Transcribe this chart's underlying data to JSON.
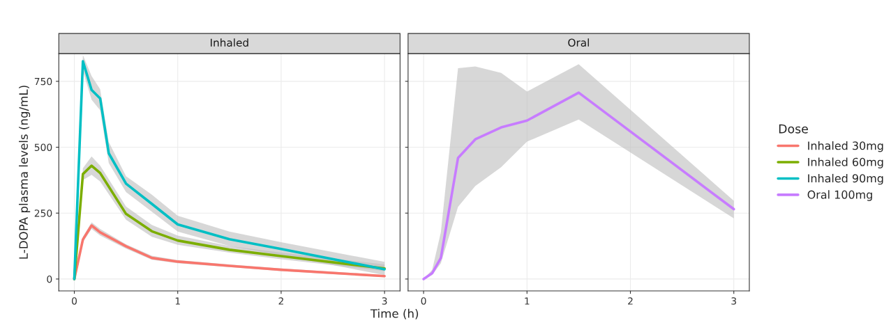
{
  "chart_data": [
    {
      "type": "line",
      "title": "Inhaled",
      "xlabel": "Time (h)",
      "ylabel": "L-DOPA plasma levels (ng/mL)",
      "legend_title": "Dose",
      "legend": "right",
      "grid": true,
      "xlim": [
        -0.15,
        3.15
      ],
      "xticks": [
        0,
        1,
        2,
        3
      ],
      "ylim": [
        -45,
        855
      ],
      "yticks": [
        0,
        250,
        500,
        750
      ],
      "series": [
        {
          "name": "Inhaled 30mg",
          "color": "#f8766d",
          "x": [
            0,
            0.083,
            0.167,
            0.25,
            0.5,
            0.75,
            1,
            1.5,
            2,
            3
          ],
          "values": [
            0,
            150,
            203,
            177,
            124,
            80,
            66,
            50,
            35,
            11
          ],
          "lower": [
            0,
            140,
            190,
            165,
            115,
            73,
            60,
            45,
            30,
            7
          ],
          "upper": [
            0,
            160,
            215,
            190,
            132,
            88,
            72,
            55,
            40,
            15
          ]
        },
        {
          "name": "Inhaled 60mg",
          "color": "#7cae00",
          "x": [
            0,
            0.083,
            0.167,
            0.25,
            0.5,
            0.75,
            1,
            1.5,
            2,
            3
          ],
          "values": [
            0,
            398,
            430,
            402,
            247,
            181,
            146,
            111,
            87,
            40
          ],
          "lower": [
            0,
            375,
            395,
            370,
            225,
            160,
            130,
            100,
            75,
            30
          ],
          "upper": [
            0,
            420,
            465,
            430,
            275,
            205,
            165,
            125,
            100,
            55
          ]
        },
        {
          "name": "Inhaled 90mg",
          "color": "#00bfc4",
          "x": [
            0,
            0.083,
            0.167,
            0.25,
            0.333,
            0.5,
            0.75,
            1,
            1.5,
            2,
            3
          ],
          "values": [
            0,
            826,
            717,
            685,
            477,
            362,
            285,
            207,
            151,
            114,
            37
          ],
          "lower": [
            0,
            790,
            680,
            640,
            440,
            330,
            255,
            180,
            125,
            90,
            15
          ],
          "upper": [
            0,
            850,
            770,
            720,
            520,
            390,
            320,
            240,
            180,
            140,
            65
          ]
        }
      ]
    },
    {
      "type": "line",
      "title": "Oral",
      "tick_labels": "x",
      "grid": true,
      "xlim": [
        -0.15,
        3.15
      ],
      "xticks": [
        0,
        1,
        2,
        3
      ],
      "ylim": [
        -45,
        855
      ],
      "series": [
        {
          "name": "Oral 100mg",
          "color": "#c77cff",
          "x": [
            0,
            0.083,
            0.167,
            0.333,
            0.5,
            0.75,
            1,
            1.5,
            3
          ],
          "values": [
            0,
            22,
            80,
            459,
            530,
            575,
            601,
            707,
            265
          ],
          "lower": [
            0,
            15,
            60,
            274,
            353,
            424,
            521,
            605,
            230
          ],
          "upper": [
            0,
            35,
            177,
            800,
            806,
            782,
            711,
            815,
            297
          ]
        }
      ]
    }
  ]
}
